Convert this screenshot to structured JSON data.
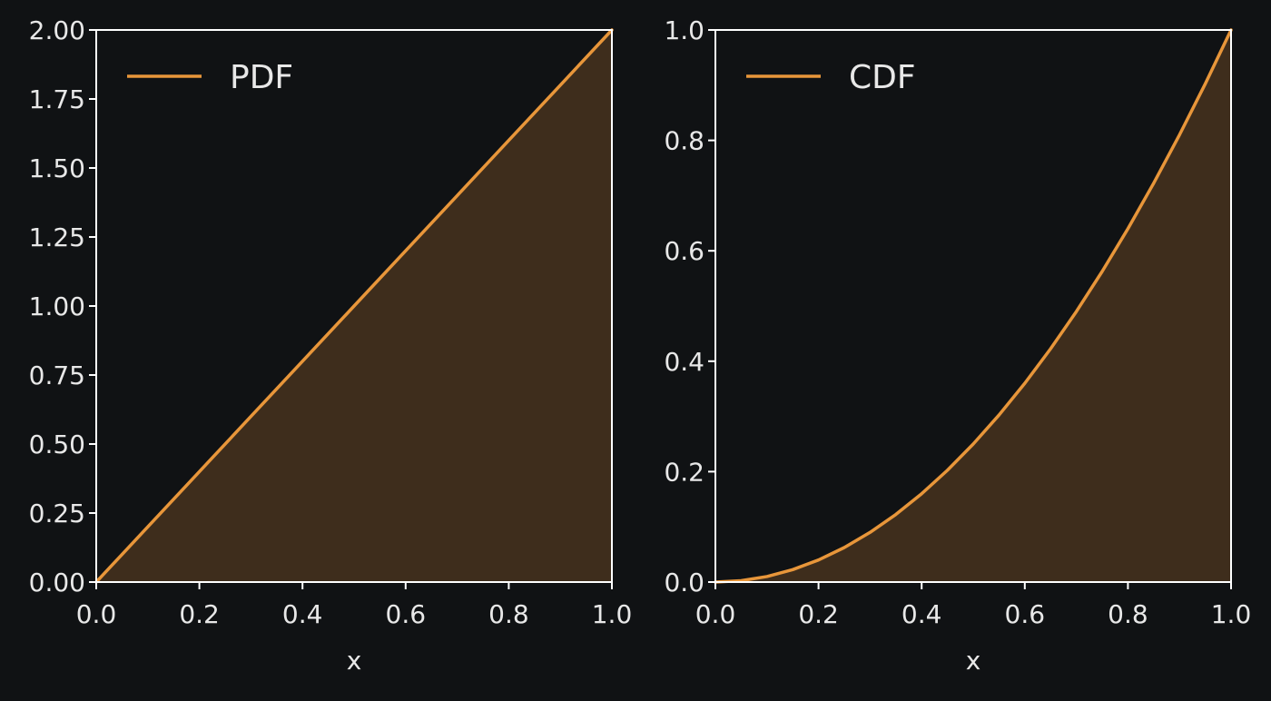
{
  "theme": {
    "background": "#101214",
    "axis_color": "#ffffff",
    "line_color": "#e8963a",
    "fill_color": "#3e2d1c",
    "text_color": "#e8e8e8"
  },
  "chart_data": [
    {
      "type": "area",
      "xlabel": "x",
      "ylabel": "",
      "xlim": [
        0.0,
        1.0
      ],
      "ylim": [
        0.0,
        2.0
      ],
      "x_ticks": [
        "0.0",
        "0.2",
        "0.4",
        "0.6",
        "0.8",
        "1.0"
      ],
      "y_ticks": [
        "0.00",
        "0.25",
        "0.50",
        "0.75",
        "1.00",
        "1.25",
        "1.50",
        "1.75",
        "2.00"
      ],
      "legend": "upper-left",
      "grid": false,
      "series": [
        {
          "name": "PDF",
          "x": [
            0.0,
            0.1,
            0.2,
            0.3,
            0.4,
            0.5,
            0.6,
            0.7,
            0.8,
            0.9,
            1.0
          ],
          "y": [
            0.0,
            0.2,
            0.4,
            0.6,
            0.8,
            1.0,
            1.2,
            1.4,
            1.6,
            1.8,
            2.0
          ]
        }
      ]
    },
    {
      "type": "area",
      "xlabel": "x",
      "ylabel": "",
      "xlim": [
        0.0,
        1.0
      ],
      "ylim": [
        0.0,
        1.0
      ],
      "x_ticks": [
        "0.0",
        "0.2",
        "0.4",
        "0.6",
        "0.8",
        "1.0"
      ],
      "y_ticks": [
        "0.0",
        "0.2",
        "0.4",
        "0.6",
        "0.8",
        "1.0"
      ],
      "legend": "upper-left",
      "grid": false,
      "series": [
        {
          "name": "CDF",
          "x": [
            0.0,
            0.05,
            0.1,
            0.15,
            0.2,
            0.25,
            0.3,
            0.35,
            0.4,
            0.45,
            0.5,
            0.55,
            0.6,
            0.65,
            0.7,
            0.75,
            0.8,
            0.85,
            0.9,
            0.95,
            1.0
          ],
          "y": [
            0.0,
            0.0025,
            0.01,
            0.0225,
            0.04,
            0.0625,
            0.09,
            0.1225,
            0.16,
            0.2025,
            0.25,
            0.3025,
            0.36,
            0.4225,
            0.49,
            0.5625,
            0.64,
            0.7225,
            0.81,
            0.9025,
            1.0
          ]
        }
      ]
    }
  ]
}
